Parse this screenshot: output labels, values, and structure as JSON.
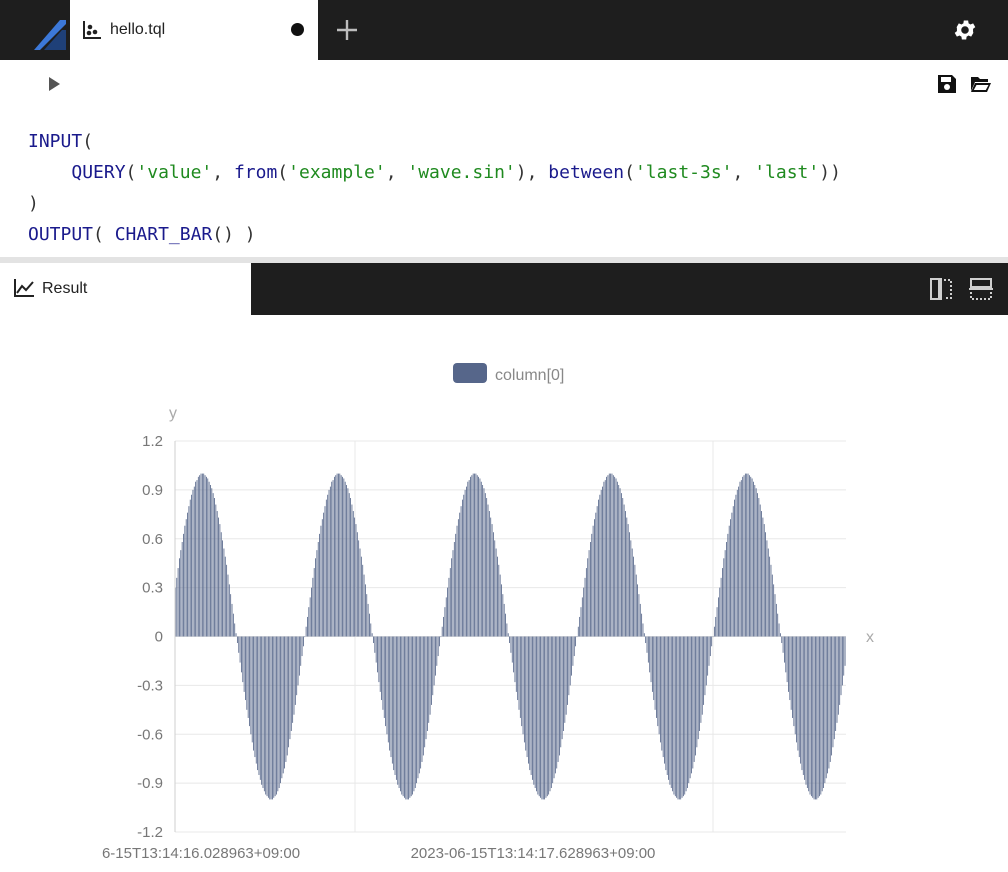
{
  "tabs": [
    {
      "label": "hello.tql",
      "icon": "scatter-chart-icon",
      "dirty": true
    }
  ],
  "editor": {
    "lines": [
      [
        {
          "t": "INPUT",
          "c": "kw"
        },
        {
          "t": "(",
          "c": "pn"
        }
      ],
      [
        {
          "t": "    ",
          "c": "pn"
        },
        {
          "t": "QUERY",
          "c": "kw"
        },
        {
          "t": "(",
          "c": "pn"
        },
        {
          "t": "'value'",
          "c": "str"
        },
        {
          "t": ", ",
          "c": "pn"
        },
        {
          "t": "from",
          "c": "kw"
        },
        {
          "t": "(",
          "c": "pn"
        },
        {
          "t": "'example'",
          "c": "str"
        },
        {
          "t": ", ",
          "c": "pn"
        },
        {
          "t": "'wave.sin'",
          "c": "str"
        },
        {
          "t": "), ",
          "c": "pn"
        },
        {
          "t": "between",
          "c": "kw"
        },
        {
          "t": "(",
          "c": "pn"
        },
        {
          "t": "'last-3s'",
          "c": "str"
        },
        {
          "t": ", ",
          "c": "pn"
        },
        {
          "t": "'last'",
          "c": "str"
        },
        {
          "t": "))",
          "c": "pn"
        }
      ],
      [
        {
          "t": ")",
          "c": "pn"
        }
      ],
      [
        {
          "t": "OUTPUT",
          "c": "kw"
        },
        {
          "t": "( ",
          "c": "pn"
        },
        {
          "t": "CHART_BAR",
          "c": "kw"
        },
        {
          "t": "() )",
          "c": "pn"
        }
      ]
    ]
  },
  "result": {
    "tab_label": "Result"
  },
  "colors": {
    "accent": "#5b6b8f",
    "bar": "#56668a",
    "dark": "#1e1e1e",
    "logo": "#2f6fc8"
  },
  "chart_data": {
    "type": "bar",
    "legend": {
      "label": "column[0]",
      "position": "top-center"
    },
    "xlabel": "x",
    "ylabel": "y",
    "ylim": [
      -1.2,
      1.2
    ],
    "yticks": [
      1.2,
      0.9,
      0.6,
      0.3,
      0,
      -0.3,
      -0.6,
      -0.9,
      -1.2
    ],
    "ytick_labels": [
      "1.2",
      "0.9",
      "0.6",
      "0.3",
      "0",
      "-0.3",
      "-0.6",
      "-0.9",
      "-1.2"
    ],
    "xtick_labels": [
      "6-15T13:14:16.028963+09:00",
      "2023-06-15T13:14:17.628963+09:00"
    ],
    "grid": true,
    "series": [
      {
        "name": "column[0]",
        "values": [
          0.3,
          0.36,
          0.42,
          0.48,
          0.53,
          0.58,
          0.63,
          0.68,
          0.72,
          0.76,
          0.8,
          0.84,
          0.87,
          0.9,
          0.92,
          0.95,
          0.96,
          0.98,
          0.99,
          1.0,
          1.0,
          1.0,
          0.99,
          0.98,
          0.97,
          0.95,
          0.93,
          0.91,
          0.88,
          0.85,
          0.81,
          0.77,
          0.73,
          0.69,
          0.64,
          0.59,
          0.54,
          0.49,
          0.44,
          0.38,
          0.32,
          0.26,
          0.2,
          0.14,
          0.08,
          0.02,
          -0.04,
          -0.1,
          -0.16,
          -0.22,
          -0.28,
          -0.34,
          -0.39,
          -0.45,
          -0.5,
          -0.55,
          -0.6,
          -0.65,
          -0.7,
          -0.74,
          -0.78,
          -0.82,
          -0.85,
          -0.88,
          -0.91,
          -0.93,
          -0.95,
          -0.97,
          -0.98,
          -0.99,
          -1.0,
          -1.0,
          -1.0,
          -0.99,
          -0.98,
          -0.97,
          -0.95,
          -0.93,
          -0.9,
          -0.87,
          -0.84,
          -0.81,
          -0.77,
          -0.73,
          -0.68,
          -0.63,
          -0.58,
          -0.53,
          -0.48,
          -0.42,
          -0.36,
          -0.3,
          -0.24,
          -0.18,
          -0.12,
          -0.06,
          0.0,
          0.06,
          0.12,
          0.18,
          0.24,
          0.3,
          0.36,
          0.42,
          0.48,
          0.53,
          0.58,
          0.63,
          0.68,
          0.72,
          0.76,
          0.8,
          0.84,
          0.87,
          0.9,
          0.92,
          0.95,
          0.96,
          0.98,
          0.99,
          1.0,
          1.0,
          1.0,
          0.99,
          0.98,
          0.97,
          0.95,
          0.93,
          0.91,
          0.88,
          0.85,
          0.81,
          0.77,
          0.73,
          0.69,
          0.64,
          0.59,
          0.54,
          0.49,
          0.44,
          0.38,
          0.32,
          0.26,
          0.2,
          0.14,
          0.08,
          0.02,
          -0.04,
          -0.1,
          -0.16,
          -0.22,
          -0.28,
          -0.34,
          -0.39,
          -0.45,
          -0.5,
          -0.55,
          -0.6,
          -0.65,
          -0.7,
          -0.74,
          -0.78,
          -0.82,
          -0.85,
          -0.88,
          -0.91,
          -0.93,
          -0.95,
          -0.97,
          -0.98,
          -0.99,
          -1.0,
          -1.0,
          -1.0,
          -0.99,
          -0.98,
          -0.97,
          -0.95,
          -0.93,
          -0.9,
          -0.87,
          -0.84,
          -0.81,
          -0.77,
          -0.73,
          -0.68,
          -0.63,
          -0.58,
          -0.53,
          -0.48,
          -0.42,
          -0.36,
          -0.3,
          -0.24,
          -0.18,
          -0.12,
          -0.06,
          0.0,
          0.06,
          0.12,
          0.18,
          0.24,
          0.3,
          0.36,
          0.42,
          0.48,
          0.53,
          0.58,
          0.63,
          0.68,
          0.72,
          0.76,
          0.8,
          0.84,
          0.87,
          0.9,
          0.92,
          0.95,
          0.96,
          0.98,
          0.99,
          1.0,
          1.0,
          1.0,
          0.99,
          0.98,
          0.97,
          0.95,
          0.93,
          0.91,
          0.88,
          0.85,
          0.81,
          0.77,
          0.73,
          0.69,
          0.64,
          0.59,
          0.54,
          0.49,
          0.44,
          0.38,
          0.32,
          0.26,
          0.2,
          0.14,
          0.08,
          0.02,
          -0.04,
          -0.1,
          -0.16,
          -0.22,
          -0.28,
          -0.34,
          -0.39,
          -0.45,
          -0.5,
          -0.55,
          -0.6,
          -0.65,
          -0.7,
          -0.74,
          -0.78,
          -0.82,
          -0.85,
          -0.88,
          -0.91,
          -0.93,
          -0.95,
          -0.97,
          -0.98,
          -0.99,
          -1.0,
          -1.0,
          -1.0,
          -0.99,
          -0.98,
          -0.97,
          -0.95,
          -0.93,
          -0.9,
          -0.87,
          -0.84,
          -0.81,
          -0.77,
          -0.73,
          -0.68,
          -0.63,
          -0.58,
          -0.53,
          -0.48,
          -0.42,
          -0.36,
          -0.3,
          -0.24,
          -0.18,
          -0.12,
          -0.06,
          0.0,
          0.06,
          0.12,
          0.18,
          0.24,
          0.3,
          0.36,
          0.42,
          0.48,
          0.53,
          0.58,
          0.63,
          0.68,
          0.72,
          0.76,
          0.8,
          0.84,
          0.87,
          0.9,
          0.92,
          0.95,
          0.96,
          0.98,
          0.99,
          1.0,
          1.0,
          1.0,
          0.99,
          0.98,
          0.97,
          0.95,
          0.93,
          0.91,
          0.88,
          0.85,
          0.81,
          0.77,
          0.73,
          0.69,
          0.64,
          0.59,
          0.54,
          0.49,
          0.44,
          0.38,
          0.32,
          0.26,
          0.2,
          0.14,
          0.08,
          0.02,
          -0.04,
          -0.1,
          -0.16,
          -0.22,
          -0.28,
          -0.34,
          -0.39,
          -0.45,
          -0.5,
          -0.55,
          -0.6,
          -0.65,
          -0.7,
          -0.74,
          -0.78,
          -0.82,
          -0.85,
          -0.88,
          -0.91,
          -0.93,
          -0.95,
          -0.97,
          -0.98,
          -0.99,
          -1.0,
          -1.0,
          -1.0,
          -0.99,
          -0.98,
          -0.97,
          -0.95,
          -0.93,
          -0.9,
          -0.87,
          -0.84,
          -0.81,
          -0.77,
          -0.73,
          -0.68,
          -0.63,
          -0.58,
          -0.53,
          -0.48,
          -0.42,
          -0.36,
          -0.3,
          -0.24,
          -0.18,
          -0.12,
          -0.06,
          0.0,
          0.06,
          0.12,
          0.18,
          0.24,
          0.3,
          0.36,
          0.42,
          0.48,
          0.53,
          0.58,
          0.63,
          0.68,
          0.72,
          0.76,
          0.8,
          0.84,
          0.87,
          0.9,
          0.92,
          0.95,
          0.96,
          0.98,
          0.99,
          1.0,
          1.0,
          1.0,
          0.99,
          0.98,
          0.97,
          0.95,
          0.93,
          0.91,
          0.88,
          0.85,
          0.81,
          0.77,
          0.73,
          0.69,
          0.64,
          0.59,
          0.54,
          0.49,
          0.44,
          0.38,
          0.32,
          0.26,
          0.2,
          0.14,
          0.08,
          0.02,
          -0.04,
          -0.1,
          -0.16,
          -0.22,
          -0.28,
          -0.34,
          -0.39,
          -0.45,
          -0.5,
          -0.55,
          -0.6,
          -0.65,
          -0.7,
          -0.74,
          -0.78,
          -0.82,
          -0.85,
          -0.88,
          -0.91,
          -0.93,
          -0.95,
          -0.97,
          -0.98,
          -0.99,
          -1.0,
          -1.0,
          -1.0,
          -0.99,
          -0.98,
          -0.97,
          -0.95,
          -0.93,
          -0.9,
          -0.87,
          -0.84,
          -0.81,
          -0.77,
          -0.73,
          -0.68,
          -0.63,
          -0.58,
          -0.53,
          -0.48,
          -0.42,
          -0.36,
          -0.3,
          -0.24,
          -0.18
        ]
      }
    ]
  }
}
